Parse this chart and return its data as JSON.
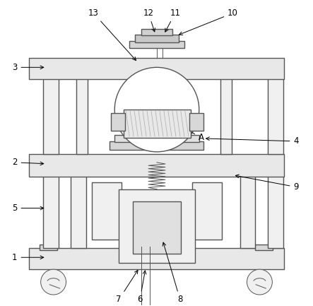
{
  "background_color": "#ffffff",
  "line_color": "#555555",
  "lw": 1.0,
  "tlw": 0.7,
  "figure_size": [
    4.43,
    4.33
  ],
  "dpi": 100
}
